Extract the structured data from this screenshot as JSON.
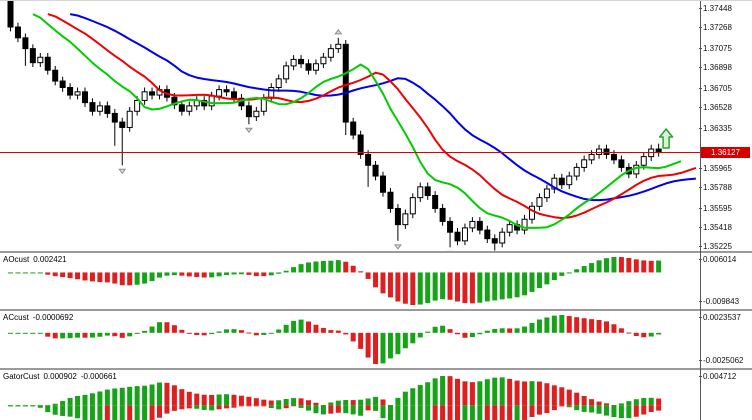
{
  "window": {
    "title": "forex-candlestick-chart-with-indicators"
  },
  "colors": {
    "up_candle": "#FFFFFF",
    "down_candle": "#000000",
    "candle_border": "#000000",
    "jaw_blue": "#0000F0",
    "teeth_red": "#F00000",
    "lips_green": "#00CC00",
    "hist_up": "#17A317",
    "hist_down": "#DD1F1F",
    "price_line": "#E00000",
    "badge_bg": "#D40000",
    "marker_green": "#28A428",
    "fractal_gray": "#8A8A8A",
    "axis": "#555555",
    "separator": "#9A9A9A"
  },
  "chart_data": {
    "type": "candlestick",
    "legend_position": "none",
    "grid": false,
    "symbol_pane": {
      "price_ticks": [
        "1.37448",
        "1.37268",
        "1.37075",
        "1.36898",
        "1.36705",
        "1.36528",
        "1.36335",
        "1.35965",
        "1.35788",
        "1.35595",
        "1.35418",
        "1.35225"
      ],
      "current_price_label": "1.36127",
      "current_price": 1.36127,
      "axis_range": [
        1.35206,
        1.37521
      ],
      "candles": [
        [
          1.3752,
          1.3756,
          1.3724,
          1.3728
        ],
        [
          1.3728,
          1.3732,
          1.3714,
          1.3718
        ],
        [
          1.3718,
          1.3722,
          1.3692,
          1.3708
        ],
        [
          1.3708,
          1.3712,
          1.3691,
          1.3695
        ],
        [
          1.3695,
          1.3704,
          1.3691,
          1.37
        ],
        [
          1.37,
          1.3704,
          1.3684,
          1.3688
        ],
        [
          1.3688,
          1.3692,
          1.3674,
          1.3678
        ],
        [
          1.3678,
          1.3682,
          1.3668,
          1.3672
        ],
        [
          1.3672,
          1.3676,
          1.3661,
          1.3665
        ],
        [
          1.3665,
          1.3672,
          1.3661,
          1.3668
        ],
        [
          1.3668,
          1.3672,
          1.3654,
          1.3658
        ],
        [
          1.3658,
          1.3662,
          1.3646,
          1.365
        ],
        [
          1.365,
          1.3659,
          1.3646,
          1.3655
        ],
        [
          1.3655,
          1.3659,
          1.3644,
          1.3648
        ],
        [
          1.3648,
          1.3652,
          1.3618,
          1.364
        ],
        [
          1.364,
          1.3644,
          1.36,
          1.3635
        ],
        [
          1.3635,
          1.3654,
          1.3631,
          1.365
        ],
        [
          1.365,
          1.3664,
          1.3646,
          1.366
        ],
        [
          1.366,
          1.3672,
          1.3656,
          1.3668
        ],
        [
          1.3668,
          1.3672,
          1.3661,
          1.3665
        ],
        [
          1.3665,
          1.3674,
          1.3661,
          1.367
        ],
        [
          1.367,
          1.3674,
          1.3659,
          1.3663
        ],
        [
          1.3663,
          1.3667,
          1.3652,
          1.3656
        ],
        [
          1.3656,
          1.366,
          1.3646,
          1.365
        ],
        [
          1.365,
          1.3659,
          1.3646,
          1.3655
        ],
        [
          1.3655,
          1.3664,
          1.3651,
          1.366
        ],
        [
          1.366,
          1.3664,
          1.3651,
          1.3655
        ],
        [
          1.3655,
          1.3668,
          1.3651,
          1.3664
        ],
        [
          1.3664,
          1.3674,
          1.366,
          1.367
        ],
        [
          1.367,
          1.3674,
          1.3664,
          1.3668
        ],
        [
          1.3668,
          1.3672,
          1.3658,
          1.3662
        ],
        [
          1.3662,
          1.3666,
          1.3651,
          1.3655
        ],
        [
          1.3655,
          1.3659,
          1.3638,
          1.3645
        ],
        [
          1.3645,
          1.3654,
          1.3641,
          1.365
        ],
        [
          1.365,
          1.3666,
          1.3646,
          1.3662
        ],
        [
          1.3662,
          1.3676,
          1.3658,
          1.3672
        ],
        [
          1.3672,
          1.3684,
          1.3668,
          1.368
        ],
        [
          1.368,
          1.3696,
          1.3676,
          1.3692
        ],
        [
          1.3692,
          1.3702,
          1.3688,
          1.3698
        ],
        [
          1.3698,
          1.3702,
          1.369,
          1.3694
        ],
        [
          1.3694,
          1.3698,
          1.3684,
          1.3688
        ],
        [
          1.3688,
          1.3698,
          1.3684,
          1.3694
        ],
        [
          1.3694,
          1.3704,
          1.369,
          1.37
        ],
        [
          1.37,
          1.3712,
          1.3696,
          1.3708
        ],
        [
          1.3708,
          1.3718,
          1.3704,
          1.3712
        ],
        [
          1.3712,
          1.3716,
          1.3628,
          1.364
        ],
        [
          1.364,
          1.3644,
          1.3624,
          1.3628
        ],
        [
          1.3628,
          1.3632,
          1.3606,
          1.361
        ],
        [
          1.361,
          1.3614,
          1.358,
          1.36
        ],
        [
          1.36,
          1.3604,
          1.3586,
          1.359
        ],
        [
          1.359,
          1.3594,
          1.3571,
          1.3575
        ],
        [
          1.3575,
          1.3579,
          1.3556,
          1.356
        ],
        [
          1.356,
          1.3564,
          1.353,
          1.3545
        ],
        [
          1.3545,
          1.3559,
          1.3541,
          1.3555
        ],
        [
          1.3555,
          1.3574,
          1.3551,
          1.357
        ],
        [
          1.357,
          1.3584,
          1.3566,
          1.358
        ],
        [
          1.358,
          1.3584,
          1.3568,
          1.3572
        ],
        [
          1.3572,
          1.3576,
          1.3556,
          1.356
        ],
        [
          1.356,
          1.3564,
          1.3544,
          1.3548
        ],
        [
          1.3548,
          1.3552,
          1.3524,
          1.3538
        ],
        [
          1.3538,
          1.3542,
          1.3526,
          1.353
        ],
        [
          1.353,
          1.3546,
          1.3526,
          1.3542
        ],
        [
          1.3542,
          1.3552,
          1.3538,
          1.3548
        ],
        [
          1.3548,
          1.3552,
          1.3536,
          1.354
        ],
        [
          1.354,
          1.3544,
          1.3528,
          1.3532
        ],
        [
          1.3532,
          1.3536,
          1.3521,
          1.3528
        ],
        [
          1.3528,
          1.3542,
          1.3524,
          1.3538
        ],
        [
          1.3538,
          1.3549,
          1.3534,
          1.3545
        ],
        [
          1.3545,
          1.3549,
          1.3536,
          1.354
        ],
        [
          1.354,
          1.3554,
          1.3536,
          1.355
        ],
        [
          1.355,
          1.3566,
          1.3546,
          1.3562
        ],
        [
          1.3562,
          1.3574,
          1.3558,
          1.357
        ],
        [
          1.357,
          1.3582,
          1.3566,
          1.3578
        ],
        [
          1.3578,
          1.3592,
          1.3574,
          1.3588
        ],
        [
          1.3588,
          1.3592,
          1.3578,
          1.3582
        ],
        [
          1.3582,
          1.3594,
          1.3578,
          1.359
        ],
        [
          1.359,
          1.3602,
          1.3586,
          1.3598
        ],
        [
          1.3598,
          1.3609,
          1.3594,
          1.3605
        ],
        [
          1.3605,
          1.3614,
          1.3601,
          1.361
        ],
        [
          1.361,
          1.3619,
          1.3606,
          1.3615
        ],
        [
          1.3615,
          1.3619,
          1.3606,
          1.361
        ],
        [
          1.361,
          1.3614,
          1.3601,
          1.3605
        ],
        [
          1.3605,
          1.3609,
          1.3594,
          1.3598
        ],
        [
          1.3598,
          1.3602,
          1.3588,
          1.3592
        ],
        [
          1.3592,
          1.3604,
          1.3588,
          1.36
        ],
        [
          1.36,
          1.3612,
          1.3596,
          1.3608
        ],
        [
          1.3608,
          1.3619,
          1.3604,
          1.3615
        ],
        [
          1.3615,
          1.362,
          1.3608,
          1.36127
        ]
      ],
      "overlays": [
        {
          "name": "alligator-jaw",
          "type": "smma",
          "period": 13,
          "shift": 8,
          "color_key": "jaw_blue"
        },
        {
          "name": "alligator-teeth",
          "type": "smma",
          "period": 8,
          "shift": 5,
          "color_key": "teeth_red"
        },
        {
          "name": "alligator-lips",
          "type": "smma",
          "period": 5,
          "shift": 3,
          "color_key": "lips_green"
        },
        {
          "name": "fractals",
          "type": "fractal",
          "color_key": "fractal_gray"
        }
      ],
      "marker": {
        "type": "up-arrow",
        "x_index": 88,
        "price": 1.36336,
        "color_key": "marker_green"
      }
    },
    "indicator_panes": [
      {
        "name": "AOcust",
        "value": "0.002421",
        "scale_max": "0.006014",
        "scale_min": "-0.009843",
        "kind": "awesome-oscillator"
      },
      {
        "name": "ACcust",
        "value": "-0.0000692",
        "scale_max": "0.0023537",
        "scale_min": "-0.0025062",
        "kind": "accelerator-oscillator"
      },
      {
        "name": "GatorCust",
        "value1": "0.000902",
        "value2": "-0.000661",
        "scale_max": "0.004712",
        "kind": "gator-oscillator"
      }
    ]
  }
}
